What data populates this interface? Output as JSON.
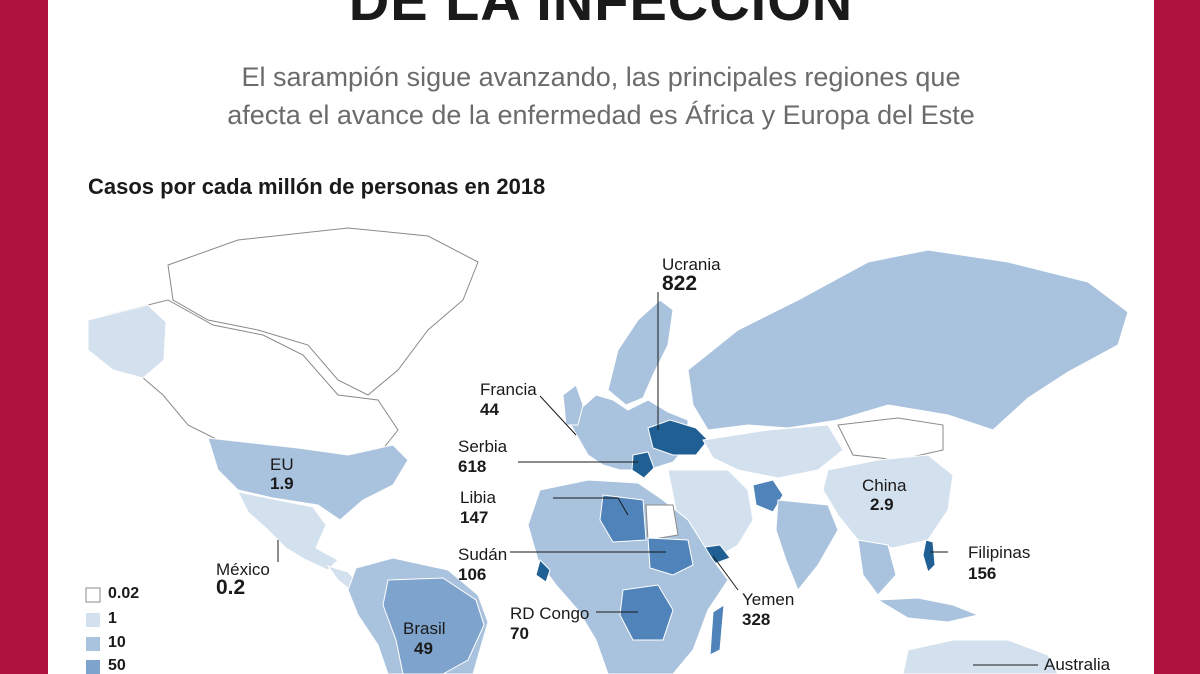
{
  "header": {
    "title": "DE LA INFECCIÓN",
    "subtitle_line1": "El sarampión sigue avanzando, las principales regiones que",
    "subtitle_line2": "afecta el avance de la enfermedad es África y Europa del Este",
    "caption": "Casos por cada millón de personas en 2018"
  },
  "legend": {
    "items": [
      {
        "label": "0.02",
        "color": "#ffffff"
      },
      {
        "label": "1",
        "color": "#d3e0ee"
      },
      {
        "label": "10",
        "color": "#a9c2dd"
      },
      {
        "label": "50",
        "color": "#7ea3cc"
      }
    ]
  },
  "colors": {
    "frame": "#b0123f",
    "land_low": "#d3e0ee",
    "land_mid": "#a9c2dd",
    "land_high": "#7ea3cc",
    "land_very_high": "#4f83b9",
    "land_max": "#1f5f94"
  },
  "countries": [
    {
      "name": "Ucrania",
      "value": "822"
    },
    {
      "name": "Francia",
      "value": "44"
    },
    {
      "name": "Serbia",
      "value": "618"
    },
    {
      "name": "EU",
      "value": "1.9"
    },
    {
      "name": "Libia",
      "value": "147"
    },
    {
      "name": "China",
      "value": "2.9"
    },
    {
      "name": "México",
      "value": "0.2"
    },
    {
      "name": "Sudán",
      "value": "106"
    },
    {
      "name": "Filipinas",
      "value": "156"
    },
    {
      "name": "Yemen",
      "value": "328"
    },
    {
      "name": "RD Congo",
      "value": "70"
    },
    {
      "name": "Brasil",
      "value": "49"
    },
    {
      "name": "Australia",
      "value": ""
    }
  ]
}
